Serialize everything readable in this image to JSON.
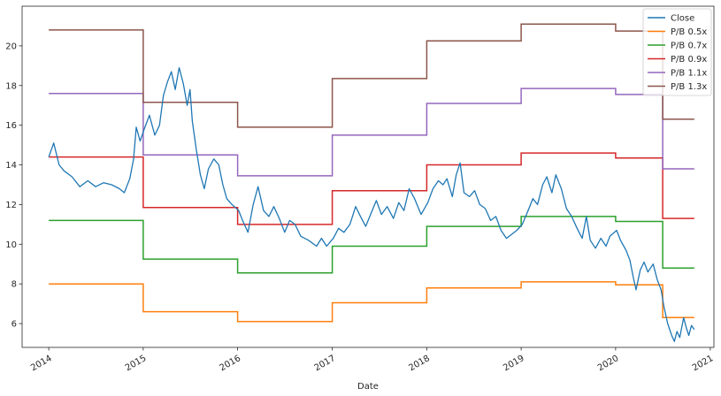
{
  "chart_data": {
    "type": "line",
    "title": "",
    "xlabel": "Date",
    "ylabel": "",
    "xlim": [
      "2013-09-20",
      "2021-01-15"
    ],
    "ylim": [
      4.8,
      22.0
    ],
    "x_ticks": [
      "2014",
      "2015",
      "2016",
      "2017",
      "2018",
      "2019",
      "2020",
      "2021"
    ],
    "y_ticks": [
      6,
      8,
      10,
      12,
      14,
      16,
      18,
      20
    ],
    "grid": false,
    "legend_position": "top-right",
    "colors": {
      "Close": "#1f77b4",
      "P/B 0.5x": "#ff7f0e",
      "P/B 0.7x": "#2ca02c",
      "P/B 0.9x": "#d62728",
      "P/B 1.1x": "#9467bd",
      "P/B 1.3x": "#8c564b"
    },
    "bands": [
      {
        "name": "P/B 0.5x",
        "steps": [
          {
            "start": "2014-01-01",
            "value": 8.0
          },
          {
            "start": "2015-01-01",
            "value": 6.6
          },
          {
            "start": "2016-01-01",
            "value": 6.1
          },
          {
            "start": "2017-01-01",
            "value": 7.05
          },
          {
            "start": "2018-01-01",
            "value": 7.8
          },
          {
            "start": "2019-01-01",
            "value": 8.1
          },
          {
            "start": "2020-01-01",
            "value": 7.95
          },
          {
            "start": "2020-07-01",
            "value": 6.3
          }
        ],
        "end": "2020-10-31"
      },
      {
        "name": "P/B 0.7x",
        "steps": [
          {
            "start": "2014-01-01",
            "value": 11.2
          },
          {
            "start": "2015-01-01",
            "value": 9.25
          },
          {
            "start": "2016-01-01",
            "value": 8.55
          },
          {
            "start": "2017-01-01",
            "value": 9.9
          },
          {
            "start": "2018-01-01",
            "value": 10.9
          },
          {
            "start": "2019-01-01",
            "value": 11.4
          },
          {
            "start": "2020-01-01",
            "value": 11.15
          },
          {
            "start": "2020-07-01",
            "value": 8.8
          }
        ],
        "end": "2020-10-31"
      },
      {
        "name": "P/B 0.9x",
        "steps": [
          {
            "start": "2014-01-01",
            "value": 14.4
          },
          {
            "start": "2015-01-01",
            "value": 11.85
          },
          {
            "start": "2016-01-01",
            "value": 11.0
          },
          {
            "start": "2017-01-01",
            "value": 12.7
          },
          {
            "start": "2018-01-01",
            "value": 14.0
          },
          {
            "start": "2019-01-01",
            "value": 14.6
          },
          {
            "start": "2020-01-01",
            "value": 14.35
          },
          {
            "start": "2020-07-01",
            "value": 11.3
          }
        ],
        "end": "2020-10-31"
      },
      {
        "name": "P/B 1.1x",
        "steps": [
          {
            "start": "2014-01-01",
            "value": 17.6
          },
          {
            "start": "2015-01-01",
            "value": 14.5
          },
          {
            "start": "2016-01-01",
            "value": 13.45
          },
          {
            "start": "2017-01-01",
            "value": 15.5
          },
          {
            "start": "2018-01-01",
            "value": 17.1
          },
          {
            "start": "2019-01-01",
            "value": 17.85
          },
          {
            "start": "2020-01-01",
            "value": 17.55
          },
          {
            "start": "2020-07-01",
            "value": 13.8
          }
        ],
        "end": "2020-10-31"
      },
      {
        "name": "P/B 1.3x",
        "steps": [
          {
            "start": "2014-01-01",
            "value": 20.8
          },
          {
            "start": "2015-01-01",
            "value": 17.15
          },
          {
            "start": "2016-01-01",
            "value": 15.9
          },
          {
            "start": "2017-01-01",
            "value": 18.35
          },
          {
            "start": "2018-01-01",
            "value": 20.25
          },
          {
            "start": "2019-01-01",
            "value": 21.1
          },
          {
            "start": "2020-01-01",
            "value": 20.75
          },
          {
            "start": "2020-07-01",
            "value": 16.3
          }
        ],
        "end": "2020-10-31"
      }
    ],
    "close": {
      "name": "Close",
      "points": [
        [
          "2014-01-01",
          14.4
        ],
        [
          "2014-01-20",
          15.1
        ],
        [
          "2014-02-10",
          14.0
        ],
        [
          "2014-03-01",
          13.7
        ],
        [
          "2014-04-01",
          13.4
        ],
        [
          "2014-05-01",
          12.9
        ],
        [
          "2014-06-01",
          13.2
        ],
        [
          "2014-07-01",
          12.9
        ],
        [
          "2014-08-01",
          13.1
        ],
        [
          "2014-09-01",
          13.0
        ],
        [
          "2014-10-01",
          12.8
        ],
        [
          "2014-10-20",
          12.6
        ],
        [
          "2014-11-10",
          13.3
        ],
        [
          "2014-11-25",
          14.3
        ],
        [
          "2014-12-05",
          15.9
        ],
        [
          "2014-12-20",
          15.2
        ],
        [
          "2015-01-05",
          15.8
        ],
        [
          "2015-01-25",
          16.5
        ],
        [
          "2015-02-15",
          15.5
        ],
        [
          "2015-03-05",
          16.0
        ],
        [
          "2015-03-20",
          17.5
        ],
        [
          "2015-04-05",
          18.2
        ],
        [
          "2015-04-20",
          18.7
        ],
        [
          "2015-05-05",
          17.8
        ],
        [
          "2015-05-20",
          18.9
        ],
        [
          "2015-06-05",
          18.1
        ],
        [
          "2015-06-20",
          17.0
        ],
        [
          "2015-07-01",
          17.8
        ],
        [
          "2015-07-10",
          16.2
        ],
        [
          "2015-07-25",
          14.8
        ],
        [
          "2015-08-10",
          13.5
        ],
        [
          "2015-08-25",
          12.8
        ],
        [
          "2015-09-10",
          13.8
        ],
        [
          "2015-10-01",
          14.3
        ],
        [
          "2015-10-20",
          14.0
        ],
        [
          "2015-11-05",
          13.0
        ],
        [
          "2015-11-20",
          12.3
        ],
        [
          "2015-12-10",
          12.0
        ],
        [
          "2016-01-05",
          11.7
        ],
        [
          "2016-01-20",
          11.2
        ],
        [
          "2016-02-10",
          10.6
        ],
        [
          "2016-03-01",
          12.0
        ],
        [
          "2016-03-20",
          12.9
        ],
        [
          "2016-04-10",
          11.7
        ],
        [
          "2016-05-01",
          11.4
        ],
        [
          "2016-05-20",
          11.9
        ],
        [
          "2016-06-10",
          11.3
        ],
        [
          "2016-07-01",
          10.6
        ],
        [
          "2016-07-20",
          11.2
        ],
        [
          "2016-08-10",
          11.0
        ],
        [
          "2016-09-01",
          10.4
        ],
        [
          "2016-10-01",
          10.2
        ],
        [
          "2016-11-01",
          9.9
        ],
        [
          "2016-11-20",
          10.3
        ],
        [
          "2016-12-10",
          9.9
        ],
        [
          "2017-01-05",
          10.3
        ],
        [
          "2017-01-25",
          10.8
        ],
        [
          "2017-02-15",
          10.6
        ],
        [
          "2017-03-10",
          11.0
        ],
        [
          "2017-04-01",
          11.9
        ],
        [
          "2017-04-20",
          11.4
        ],
        [
          "2017-05-10",
          10.9
        ],
        [
          "2017-06-01",
          11.6
        ],
        [
          "2017-06-20",
          12.2
        ],
        [
          "2017-07-10",
          11.5
        ],
        [
          "2017-08-01",
          11.9
        ],
        [
          "2017-08-25",
          11.3
        ],
        [
          "2017-09-15",
          12.1
        ],
        [
          "2017-10-05",
          11.7
        ],
        [
          "2017-10-25",
          12.8
        ],
        [
          "2017-11-15",
          12.3
        ],
        [
          "2017-12-10",
          11.5
        ],
        [
          "2018-01-05",
          12.1
        ],
        [
          "2018-01-25",
          12.8
        ],
        [
          "2018-02-15",
          13.2
        ],
        [
          "2018-03-05",
          13.0
        ],
        [
          "2018-03-20",
          13.3
        ],
        [
          "2018-04-10",
          12.4
        ],
        [
          "2018-04-25",
          13.5
        ],
        [
          "2018-05-10",
          14.1
        ],
        [
          "2018-05-25",
          12.6
        ],
        [
          "2018-06-15",
          12.4
        ],
        [
          "2018-07-05",
          12.7
        ],
        [
          "2018-07-25",
          12.0
        ],
        [
          "2018-08-15",
          11.8
        ],
        [
          "2018-09-05",
          11.2
        ],
        [
          "2018-09-25",
          11.4
        ],
        [
          "2018-10-15",
          10.7
        ],
        [
          "2018-11-05",
          10.3
        ],
        [
          "2018-11-25",
          10.5
        ],
        [
          "2018-12-15",
          10.7
        ],
        [
          "2019-01-05",
          11.0
        ],
        [
          "2019-01-25",
          11.6
        ],
        [
          "2019-02-15",
          12.3
        ],
        [
          "2019-03-05",
          12.0
        ],
        [
          "2019-03-25",
          13.0
        ],
        [
          "2019-04-10",
          13.4
        ],
        [
          "2019-04-30",
          12.6
        ],
        [
          "2019-05-15",
          13.5
        ],
        [
          "2019-06-05",
          12.8
        ],
        [
          "2019-06-25",
          11.8
        ],
        [
          "2019-07-15",
          11.4
        ],
        [
          "2019-08-05",
          10.8
        ],
        [
          "2019-08-25",
          10.3
        ],
        [
          "2019-09-10",
          11.4
        ],
        [
          "2019-09-25",
          10.2
        ],
        [
          "2019-10-15",
          9.8
        ],
        [
          "2019-11-05",
          10.3
        ],
        [
          "2019-11-25",
          9.9
        ],
        [
          "2019-12-10",
          10.4
        ],
        [
          "2020-01-05",
          10.7
        ],
        [
          "2020-01-20",
          10.2
        ],
        [
          "2020-02-10",
          9.7
        ],
        [
          "2020-02-25",
          9.2
        ],
        [
          "2020-03-10",
          8.3
        ],
        [
          "2020-03-20",
          7.7
        ],
        [
          "2020-04-05",
          8.7
        ],
        [
          "2020-04-20",
          9.1
        ],
        [
          "2020-05-05",
          8.6
        ],
        [
          "2020-05-25",
          9.0
        ],
        [
          "2020-06-10",
          8.2
        ],
        [
          "2020-06-25",
          7.7
        ],
        [
          "2020-07-05",
          6.9
        ],
        [
          "2020-07-20",
          6.0
        ],
        [
          "2020-08-05",
          5.4
        ],
        [
          "2020-08-15",
          5.1
        ],
        [
          "2020-08-25",
          5.6
        ],
        [
          "2020-09-05",
          5.3
        ],
        [
          "2020-09-20",
          6.3
        ],
        [
          "2020-09-30",
          5.8
        ],
        [
          "2020-10-10",
          5.4
        ],
        [
          "2020-10-20",
          5.9
        ],
        [
          "2020-10-31",
          5.7
        ]
      ]
    }
  }
}
